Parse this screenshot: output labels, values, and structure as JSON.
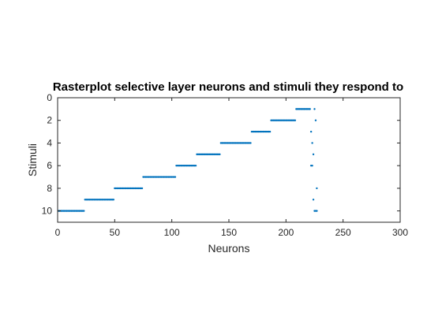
{
  "chart_data": {
    "type": "scatter",
    "title": "Rasterplot selective layer neurons and stimuli they respond to",
    "xlabel": "Neurons",
    "ylabel": "Stimuli",
    "xlim": [
      0,
      300
    ],
    "ylim": [
      11,
      0
    ],
    "y_reversed": true,
    "xticks": [
      "0",
      "50",
      "100",
      "150",
      "200",
      "250",
      "300"
    ],
    "yticks": [
      "0",
      "2",
      "4",
      "6",
      "8",
      "10"
    ],
    "marker_color": "#0072bd",
    "series": [
      {
        "segments": [
          {
            "stimulus": 10,
            "x_from": 1,
            "x_to": 23
          },
          {
            "stimulus": 9,
            "x_from": 24,
            "x_to": 49
          },
          {
            "stimulus": 8,
            "x_from": 50,
            "x_to": 74
          },
          {
            "stimulus": 7,
            "x_from": 75,
            "x_to": 103
          },
          {
            "stimulus": 6,
            "x_from": 104,
            "x_to": 121
          },
          {
            "stimulus": 5,
            "x_from": 122,
            "x_to": 142
          },
          {
            "stimulus": 4,
            "x_from": 143,
            "x_to": 169
          },
          {
            "stimulus": 3,
            "x_from": 170,
            "x_to": 186
          },
          {
            "stimulus": 2,
            "x_from": 187,
            "x_to": 208
          },
          {
            "stimulus": 1,
            "x_from": 209,
            "x_to": 221
          }
        ],
        "points": [
          {
            "x": 222,
            "y": 3
          },
          {
            "x": 222,
            "y": 6
          },
          {
            "x": 223,
            "y": 4
          },
          {
            "x": 223,
            "y": 6
          },
          {
            "x": 224,
            "y": 5
          },
          {
            "x": 224,
            "y": 9
          },
          {
            "x": 225,
            "y": 1
          },
          {
            "x": 225,
            "y": 10
          },
          {
            "x": 226,
            "y": 2
          },
          {
            "x": 226,
            "y": 10
          },
          {
            "x": 227,
            "y": 8
          },
          {
            "x": 227,
            "y": 10
          }
        ]
      }
    ]
  }
}
